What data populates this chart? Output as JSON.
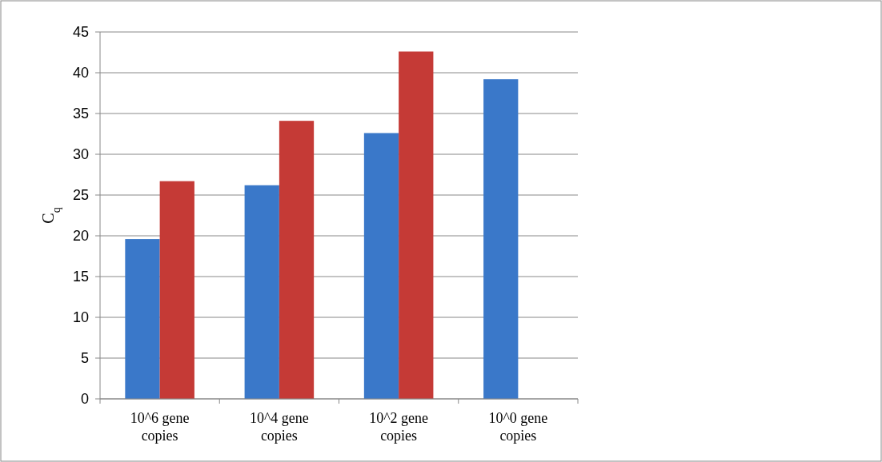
{
  "chart_data": {
    "type": "bar",
    "ylabel": "C$_{q}$",
    "categories": [
      "10^6 gene copies",
      "10^4 gene copies",
      "10^2 gene copies",
      "10^0 gene copies"
    ],
    "series": [
      {
        "color": "#3a78c9",
        "values": [
          19.6,
          26.2,
          32.6,
          39.2
        ]
      },
      {
        "color": "#c53a36",
        "values": [
          26.7,
          34.1,
          42.6,
          null
        ]
      }
    ],
    "ylim": [
      0,
      45
    ],
    "yticks": [
      0,
      5,
      10,
      15,
      20,
      25,
      30,
      35,
      40,
      45
    ],
    "grid": "y"
  }
}
